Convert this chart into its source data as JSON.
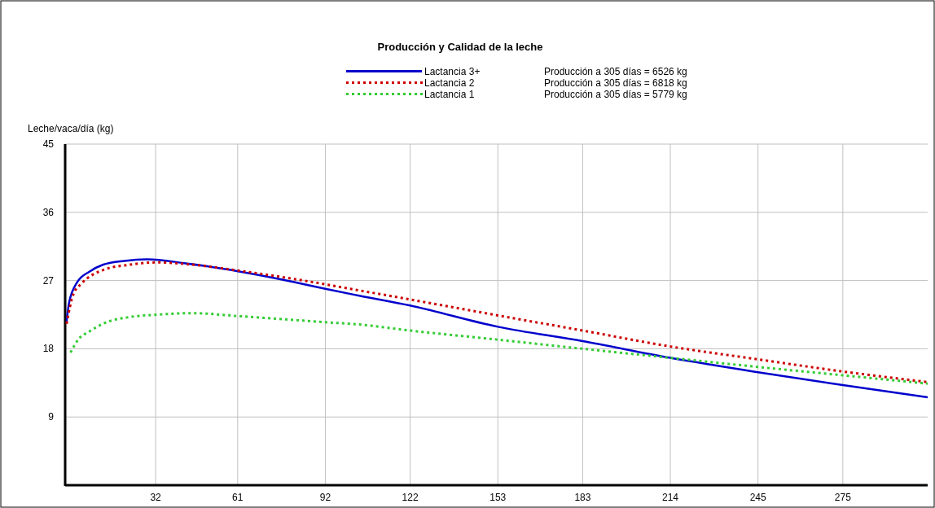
{
  "chart_data": {
    "type": "line",
    "title": "Producción y Calidad de la leche",
    "ylabel": "Leche/vaca/día (kg)",
    "xlim": [
      0,
      305
    ],
    "xticks": [
      32,
      61,
      92,
      122,
      153,
      183,
      214,
      245,
      275
    ],
    "ylim": [
      0,
      45
    ],
    "yticks": [
      9,
      18,
      27,
      36,
      45
    ],
    "grid": true,
    "legend": "top",
    "marker": "none",
    "annotations": [
      "Producción a 305 días = 6526 kg",
      "Producción a 305 días = 6818 kg",
      "Producción a 305 días = 5779 kg"
    ],
    "series": [
      {
        "name": "Lactancia 3+",
        "color": "#0000cc",
        "line_style": "solid",
        "x": [
          0.5,
          1.4,
          4.3,
          8.7,
          13.5,
          21,
          29,
          42,
          61.5,
          81,
          92,
          104,
          122,
          153,
          183,
          214,
          245,
          275,
          305
        ],
        "values": [
          21.6,
          24.1,
          26.8,
          28.2,
          29.1,
          29.6,
          29.8,
          29.3,
          28.2,
          26.8,
          25.9,
          25,
          23.7,
          20.9,
          19,
          16.8,
          14.9,
          13.2,
          11.6
        ]
      },
      {
        "name": "Lactancia 2",
        "color": "#cc0000",
        "line_style": "dotted",
        "x": [
          0.5,
          2.9,
          5.8,
          13.5,
          23,
          32.7,
          42,
          61.5,
          81,
          92,
          104,
          122,
          153,
          183,
          214,
          245,
          275,
          305
        ],
        "values": [
          21.3,
          25.2,
          26.6,
          28.4,
          29.1,
          29.4,
          29.2,
          28.3,
          27.2,
          26.5,
          25.7,
          24.5,
          22.4,
          20.4,
          18.3,
          16.6,
          15,
          13.6
        ]
      },
      {
        "name": "Lactancia 1",
        "color": "#33cc33",
        "line_style": "dotted",
        "x": [
          1.9,
          4.8,
          8.2,
          14,
          23,
          32.7,
          45,
          61.5,
          81,
          92,
          104,
          122,
          153,
          183,
          214,
          245,
          275,
          305
        ],
        "values": [
          17.5,
          19.3,
          20.2,
          21.4,
          22.2,
          22.5,
          22.7,
          22.3,
          21.8,
          21.5,
          21.2,
          20.4,
          19.2,
          18,
          16.8,
          15.6,
          14.5,
          13.4
        ]
      }
    ]
  }
}
